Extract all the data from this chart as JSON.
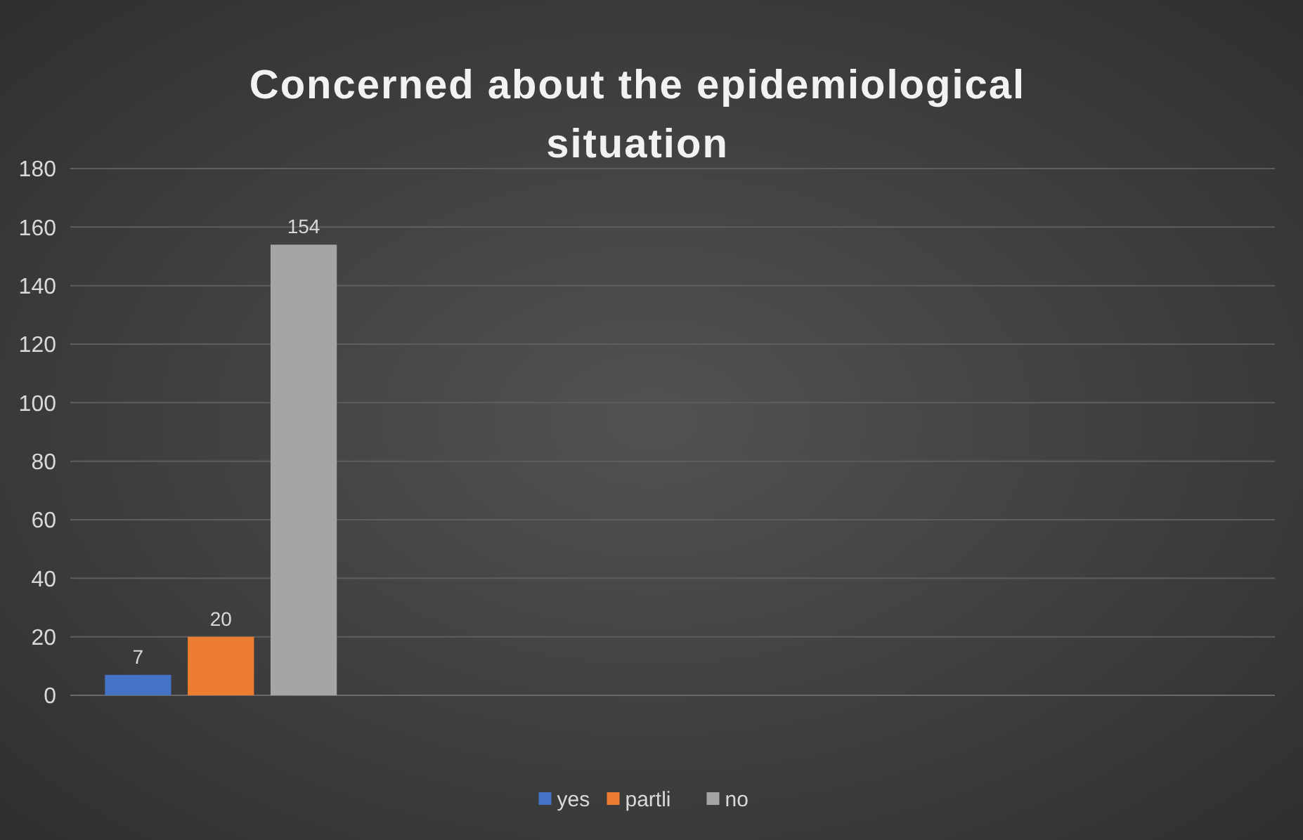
{
  "chart_data": {
    "type": "bar",
    "title": "Concerned about the epidemiological situation",
    "categories": [
      null,
      null,
      null,
      null
    ],
    "series": [
      {
        "name": "yes",
        "color": "#4472c4",
        "values": [
          7,
          null,
          null,
          null
        ]
      },
      {
        "name": "partli",
        "color": "#ed7d31",
        "values": [
          20,
          null,
          null,
          null
        ]
      },
      {
        "name": "no",
        "color": "#a5a5a5",
        "values": [
          154,
          null,
          null,
          null
        ]
      }
    ],
    "ylim": [
      0,
      180
    ],
    "yticks": [
      0,
      20,
      40,
      60,
      80,
      100,
      120,
      140,
      160,
      180
    ],
    "grid": "y",
    "legend": "bottom",
    "data_labels": true
  }
}
